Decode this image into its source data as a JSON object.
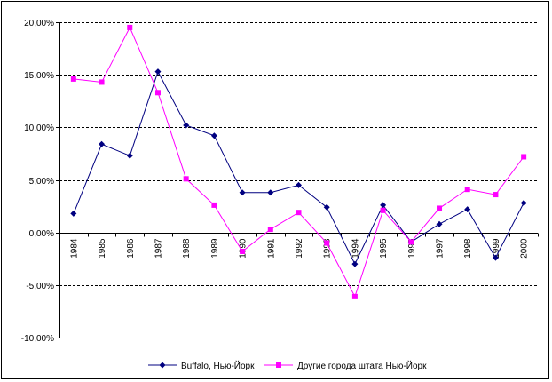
{
  "chart_data": {
    "type": "line",
    "title": "",
    "xlabel": "",
    "ylabel": "",
    "categories": [
      "1984",
      "1985",
      "1986",
      "1987",
      "1988",
      "1989",
      "1990",
      "1991",
      "1992",
      "1993",
      "1994",
      "1995",
      "1996",
      "1997",
      "1998",
      "1999",
      "2000"
    ],
    "ylim": [
      -0.1,
      0.2
    ],
    "yticks": [
      -0.1,
      -0.05,
      0.0,
      0.05,
      0.1,
      0.15,
      0.2
    ],
    "ytick_labels": [
      "-10,00%",
      "-5,00%",
      "0,00%",
      "5,00%",
      "10,00%",
      "15,00%",
      "20,00%"
    ],
    "grid": "horizontal dashed",
    "legend_position": "bottom",
    "series": [
      {
        "name": "Buffalo, Нью-Йорк",
        "color": "#000080",
        "marker": "diamond",
        "values": [
          0.018,
          0.084,
          0.073,
          0.153,
          0.102,
          0.092,
          0.038,
          0.038,
          0.045,
          0.024,
          -0.03,
          0.026,
          -0.009,
          0.008,
          0.022,
          -0.024,
          0.028
        ]
      },
      {
        "name": "Другие города штата Нью-Йорк",
        "color": "#ff00ff",
        "marker": "square",
        "values": [
          0.146,
          0.143,
          0.195,
          0.133,
          0.051,
          0.026,
          -0.018,
          0.003,
          0.019,
          -0.01,
          -0.061,
          0.021,
          -0.009,
          0.023,
          0.041,
          0.036,
          0.072
        ]
      }
    ]
  }
}
